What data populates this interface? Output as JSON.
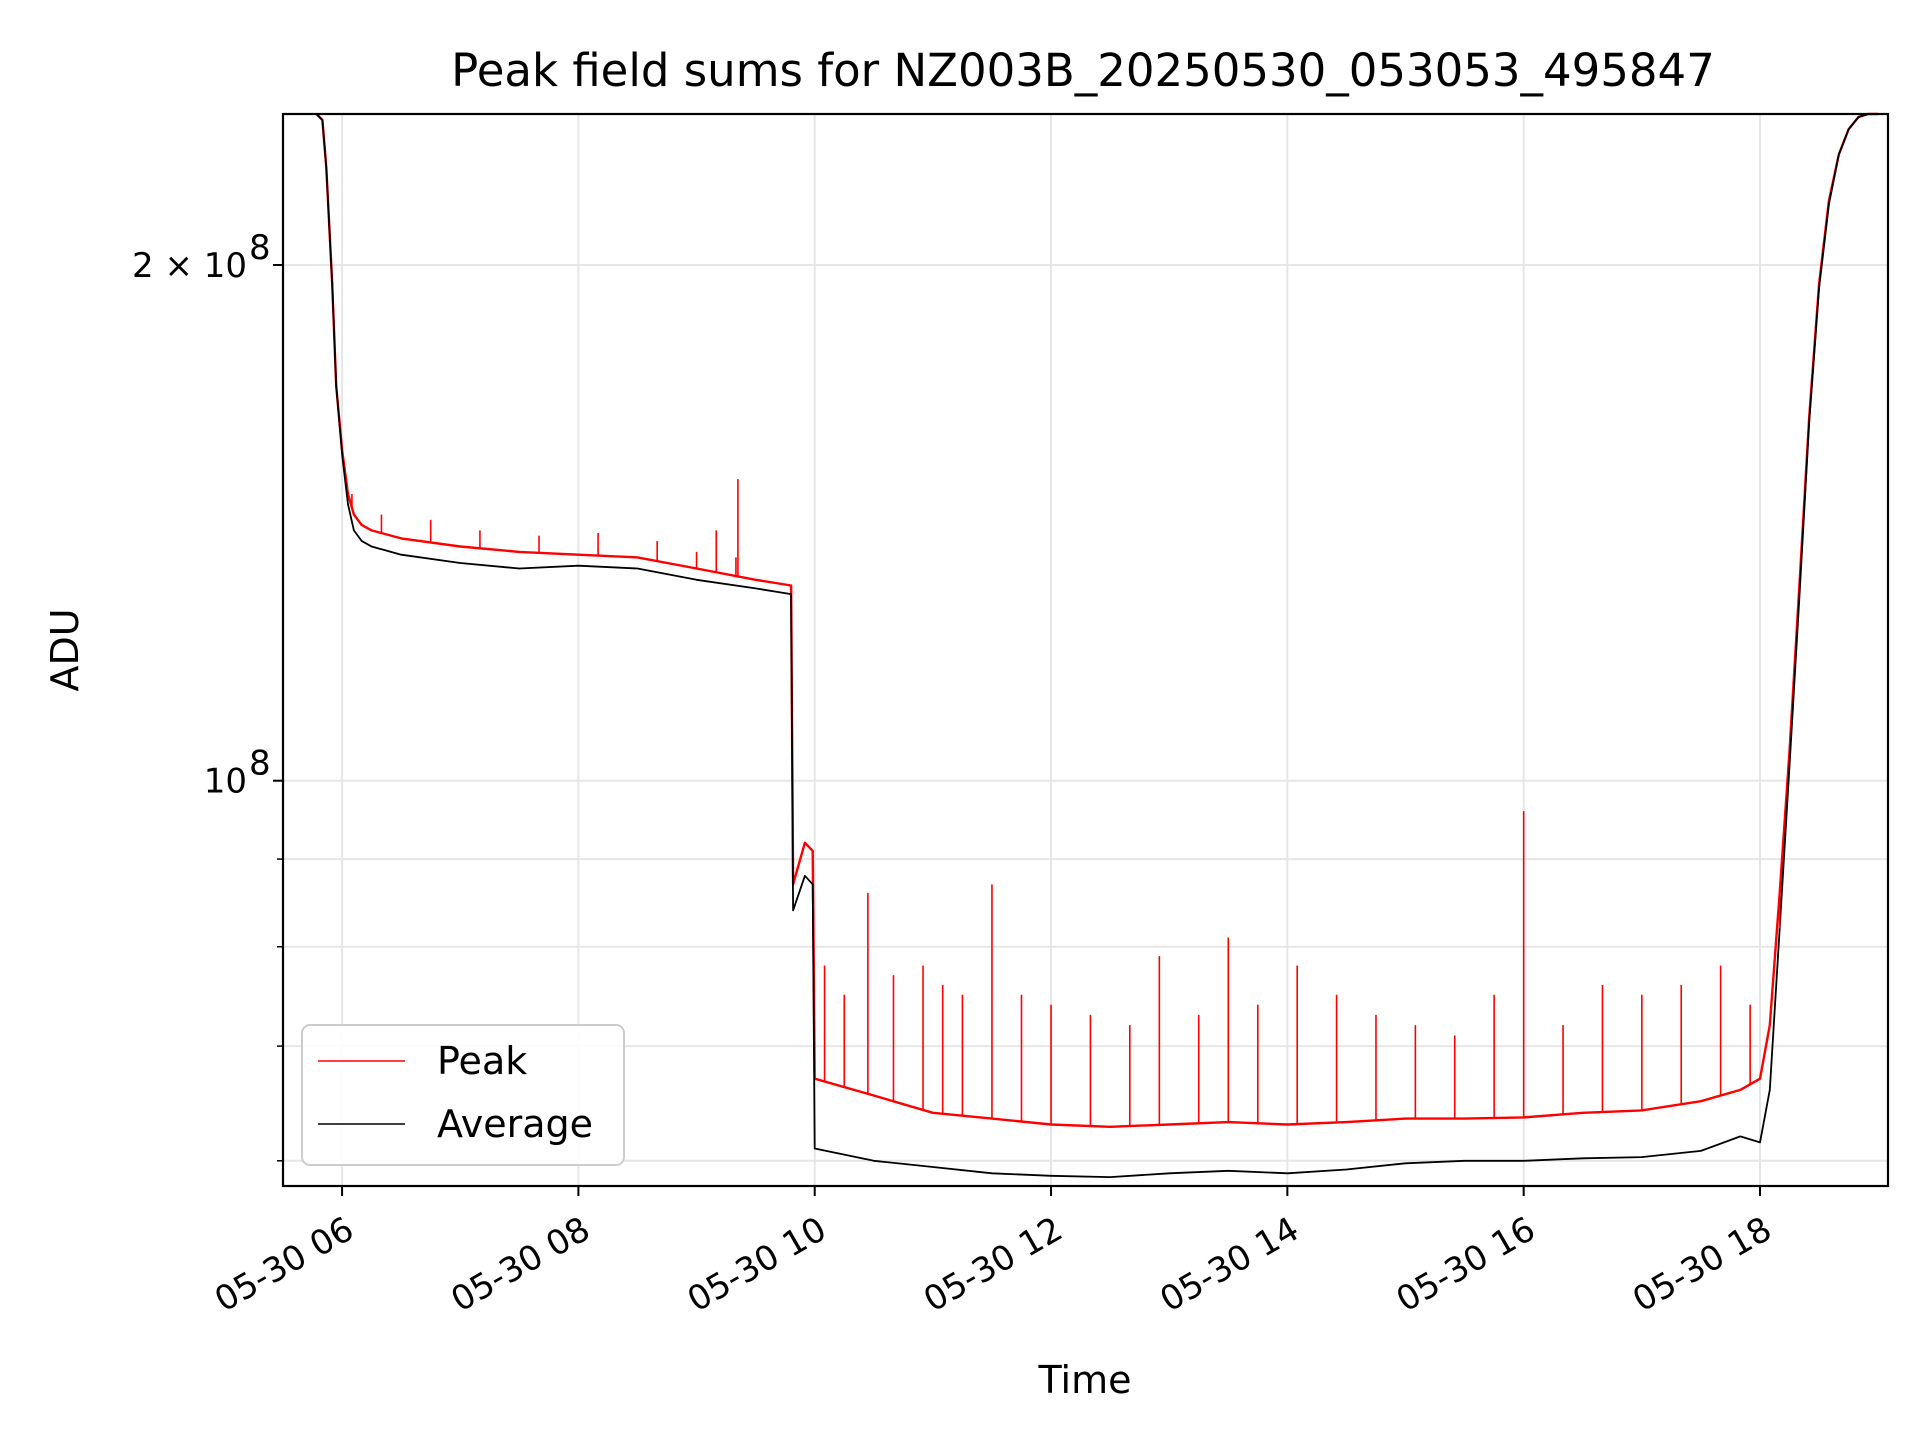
{
  "chart_data": {
    "type": "line",
    "title": "Peak field sums for NZ003B_20250530_053053_495847",
    "xlabel": "Time",
    "ylabel": "ADU",
    "x_axis": {
      "kind": "time",
      "range": [
        "2025-05-30 05:30",
        "2025-05-30 19:05"
      ],
      "ticks": [
        {
          "value": "2025-05-30 06:00",
          "label": "05-30 06"
        },
        {
          "value": "2025-05-30 08:00",
          "label": "05-30 08"
        },
        {
          "value": "2025-05-30 10:00",
          "label": "05-30 10"
        },
        {
          "value": "2025-05-30 12:00",
          "label": "05-30 12"
        },
        {
          "value": "2025-05-30 14:00",
          "label": "05-30 14"
        },
        {
          "value": "2025-05-30 16:00",
          "label": "05-30 16"
        },
        {
          "value": "2025-05-30 18:00",
          "label": "05-30 18"
        }
      ]
    },
    "y_axis": {
      "scale": "log",
      "range": [
        58000000,
        245000000
      ],
      "ticks": [
        {
          "value": 100000000,
          "label": "10",
          "sup": "8"
        },
        {
          "value": 200000000,
          "label": "2 × 10",
          "sup": "8"
        }
      ],
      "minor_ticks": [
        60000000,
        70000000,
        80000000,
        90000000
      ]
    },
    "grid": true,
    "legend": {
      "position": "lower-left",
      "entries": [
        {
          "name": "Peak",
          "color": "#ff0000"
        },
        {
          "name": "Average",
          "color": "#000000"
        }
      ]
    },
    "series": [
      {
        "name": "Peak",
        "color": "#ff0000",
        "x": [
          "2025-05-30 05:47",
          "2025-05-30 05:50",
          "2025-05-30 05:52",
          "2025-05-30 05:55",
          "2025-05-30 05:57",
          "2025-05-30 06:00",
          "2025-05-30 06:03",
          "2025-05-30 06:06",
          "2025-05-30 06:10",
          "2025-05-30 06:15",
          "2025-05-30 06:30",
          "2025-05-30 07:00",
          "2025-05-30 07:30",
          "2025-05-30 08:00",
          "2025-05-30 08:30",
          "2025-05-30 09:00",
          "2025-05-30 09:30",
          "2025-05-30 09:48",
          "2025-05-30 09:49",
          "2025-05-30 09:55",
          "2025-05-30 09:59",
          "2025-05-30 10:00",
          "2025-05-30 10:30",
          "2025-05-30 11:00",
          "2025-05-30 11:30",
          "2025-05-30 12:00",
          "2025-05-30 12:30",
          "2025-05-30 13:00",
          "2025-05-30 13:30",
          "2025-05-30 14:00",
          "2025-05-30 14:30",
          "2025-05-30 15:00",
          "2025-05-30 15:30",
          "2025-05-30 16:00",
          "2025-05-30 16:30",
          "2025-05-30 17:00",
          "2025-05-30 17:30",
          "2025-05-30 17:50",
          "2025-05-30 18:00",
          "2025-05-30 18:05",
          "2025-05-30 18:10",
          "2025-05-30 18:15",
          "2025-05-30 18:20",
          "2025-05-30 18:25",
          "2025-05-30 18:30",
          "2025-05-30 18:35",
          "2025-05-30 18:40",
          "2025-05-30 18:45",
          "2025-05-30 18:50",
          "2025-05-30 18:55",
          "2025-05-30 19:00"
        ],
        "y": [
          245000000,
          243000000,
          228000000,
          195000000,
          170000000,
          156000000,
          147000000,
          143000000,
          141000000,
          140000000,
          138500000,
          137000000,
          136000000,
          135500000,
          135000000,
          133000000,
          131000000,
          130000000,
          87000000,
          92000000,
          91000000,
          67000000,
          65500000,
          64000000,
          63500000,
          63000000,
          62800000,
          63000000,
          63200000,
          63000000,
          63200000,
          63500000,
          63500000,
          63600000,
          64000000,
          64200000,
          65000000,
          66000000,
          67000000,
          72000000,
          86000000,
          104000000,
          130000000,
          163000000,
          195000000,
          218000000,
          232000000,
          240000000,
          244000000,
          245000000,
          245000000
        ]
      },
      {
        "name": "Average",
        "color": "#000000",
        "x": [
          "2025-05-30 05:47",
          "2025-05-30 05:50",
          "2025-05-30 05:52",
          "2025-05-30 05:55",
          "2025-05-30 05:57",
          "2025-05-30 06:00",
          "2025-05-30 06:03",
          "2025-05-30 06:06",
          "2025-05-30 06:10",
          "2025-05-30 06:15",
          "2025-05-30 06:30",
          "2025-05-30 07:00",
          "2025-05-30 07:30",
          "2025-05-30 08:00",
          "2025-05-30 08:30",
          "2025-05-30 09:00",
          "2025-05-30 09:30",
          "2025-05-30 09:48",
          "2025-05-30 09:49",
          "2025-05-30 09:55",
          "2025-05-30 09:59",
          "2025-05-30 10:00",
          "2025-05-30 10:30",
          "2025-05-30 11:00",
          "2025-05-30 11:30",
          "2025-05-30 12:00",
          "2025-05-30 12:30",
          "2025-05-30 13:00",
          "2025-05-30 13:30",
          "2025-05-30 14:00",
          "2025-05-30 14:30",
          "2025-05-30 15:00",
          "2025-05-30 15:30",
          "2025-05-30 16:00",
          "2025-05-30 16:30",
          "2025-05-30 17:00",
          "2025-05-30 17:30",
          "2025-05-30 17:50",
          "2025-05-30 18:00",
          "2025-05-30 18:05",
          "2025-05-30 18:10",
          "2025-05-30 18:15",
          "2025-05-30 18:20",
          "2025-05-30 18:25",
          "2025-05-30 18:30",
          "2025-05-30 18:35",
          "2025-05-30 18:40",
          "2025-05-30 18:45",
          "2025-05-30 18:50",
          "2025-05-30 18:55",
          "2025-05-30 19:00"
        ],
        "y": [
          245000000,
          243000000,
          228000000,
          195000000,
          170000000,
          155000000,
          145000000,
          140000000,
          138000000,
          137000000,
          135500000,
          134000000,
          133000000,
          133500000,
          133000000,
          131000000,
          129500000,
          128500000,
          84000000,
          88000000,
          87000000,
          61000000,
          60000000,
          59500000,
          59000000,
          58800000,
          58700000,
          59000000,
          59200000,
          59000000,
          59300000,
          59800000,
          60000000,
          60000000,
          60200000,
          60300000,
          60800000,
          62000000,
          61500000,
          66000000,
          82000000,
          102000000,
          128000000,
          162000000,
          194000000,
          217000000,
          232000000,
          240000000,
          244000000,
          245000000,
          245000000
        ]
      }
    ],
    "spikes": {
      "Peak": [
        [
          "2025-05-30 06:05",
          147000000
        ],
        [
          "2025-05-30 06:20",
          143000000
        ],
        [
          "2025-05-30 06:45",
          142000000
        ],
        [
          "2025-05-30 07:10",
          140000000
        ],
        [
          "2025-05-30 07:40",
          139000000
        ],
        [
          "2025-05-30 08:10",
          139500000
        ],
        [
          "2025-05-30 08:40",
          138000000
        ],
        [
          "2025-05-30 09:00",
          136000000
        ],
        [
          "2025-05-30 09:10",
          140000000
        ],
        [
          "2025-05-30 09:20",
          135000000
        ],
        [
          "2025-05-30 09:21",
          150000000
        ],
        [
          "2025-05-30 10:05",
          78000000
        ],
        [
          "2025-05-30 10:15",
          75000000
        ],
        [
          "2025-05-30 10:27",
          86000000
        ],
        [
          "2025-05-30 10:40",
          77000000
        ],
        [
          "2025-05-30 10:55",
          78000000
        ],
        [
          "2025-05-30 11:05",
          76000000
        ],
        [
          "2025-05-30 11:15",
          75000000
        ],
        [
          "2025-05-30 11:30",
          87000000
        ],
        [
          "2025-05-30 11:45",
          75000000
        ],
        [
          "2025-05-30 12:00",
          74000000
        ],
        [
          "2025-05-30 12:20",
          73000000
        ],
        [
          "2025-05-30 12:40",
          72000000
        ],
        [
          "2025-05-30 12:55",
          79000000
        ],
        [
          "2025-05-30 13:15",
          73000000
        ],
        [
          "2025-05-30 13:30",
          81000000
        ],
        [
          "2025-05-30 13:45",
          74000000
        ],
        [
          "2025-05-30 14:05",
          78000000
        ],
        [
          "2025-05-30 14:25",
          75000000
        ],
        [
          "2025-05-30 14:45",
          73000000
        ],
        [
          "2025-05-30 15:05",
          72000000
        ],
        [
          "2025-05-30 15:25",
          71000000
        ],
        [
          "2025-05-30 15:45",
          75000000
        ],
        [
          "2025-05-30 16:00",
          96000000
        ],
        [
          "2025-05-30 16:20",
          72000000
        ],
        [
          "2025-05-30 16:40",
          76000000
        ],
        [
          "2025-05-30 17:00",
          75000000
        ],
        [
          "2025-05-30 17:20",
          76000000
        ],
        [
          "2025-05-30 17:40",
          78000000
        ],
        [
          "2025-05-30 17:55",
          74000000
        ],
        [
          "2025-05-30 18:10",
          82000000
        ]
      ]
    }
  }
}
